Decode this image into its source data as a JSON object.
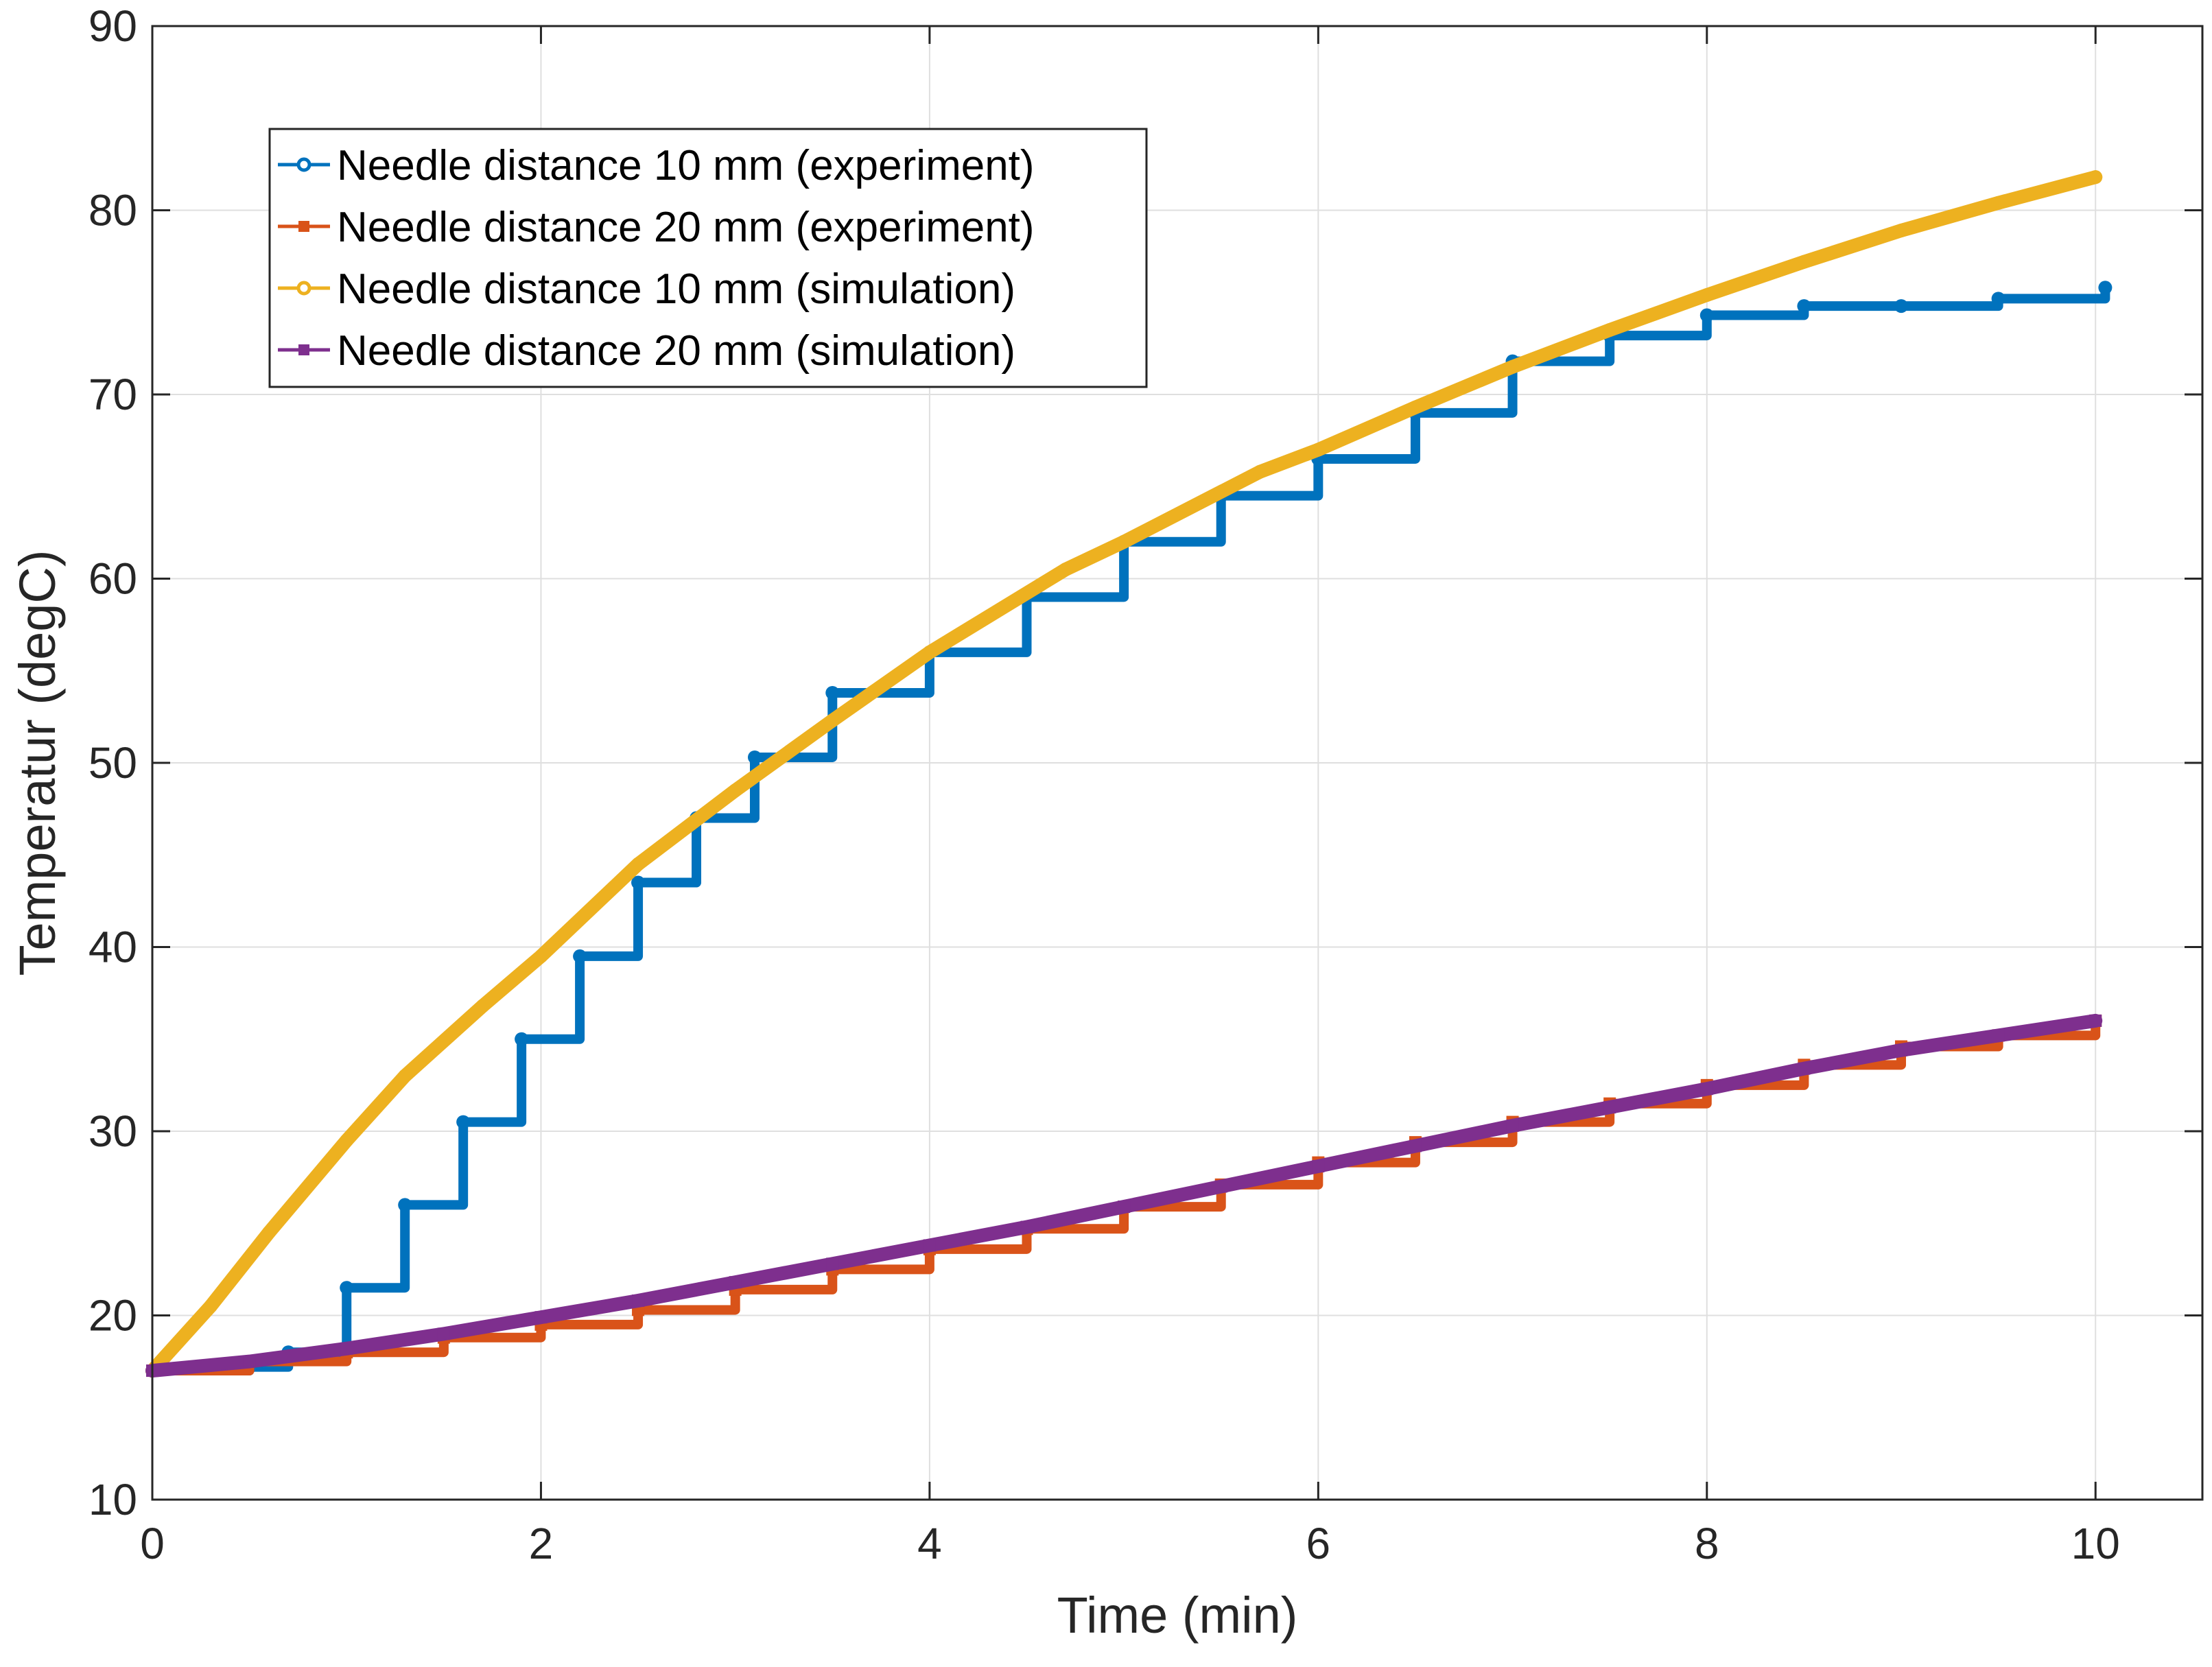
{
  "chart_data": {
    "type": "line",
    "title": "",
    "xlabel": "Time (min)",
    "ylabel": "Temperatur (degC)",
    "xlim": [
      0,
      10.55
    ],
    "ylim": [
      10,
      90
    ],
    "xticks": [
      0,
      2,
      4,
      6,
      8,
      10
    ],
    "yticks": [
      10,
      20,
      30,
      40,
      50,
      60,
      70,
      80,
      90
    ],
    "xtick_labels": [
      "0",
      "2",
      "4",
      "6",
      "8",
      "10"
    ],
    "ytick_labels": [
      "10",
      "20",
      "30",
      "40",
      "50",
      "60",
      "70",
      "80",
      "90"
    ],
    "grid": true,
    "legend_position": "top-left",
    "series": [
      {
        "name": "Needle distance 10 mm (experiment)",
        "color": "#0072BD",
        "marker": "circle",
        "step": true,
        "x": [
          0,
          0.5,
          0.7,
          1.0,
          1.3,
          1.6,
          1.9,
          2.2,
          2.5,
          2.8,
          3.1,
          3.5,
          4.0,
          4.5,
          5.0,
          5.5,
          6.0,
          6.5,
          7.0,
          7.5,
          8.0,
          8.5,
          9.0,
          9.5,
          10.05
        ],
        "y": [
          17.0,
          17.2,
          18.0,
          21.5,
          26.0,
          30.5,
          35.0,
          39.5,
          43.5,
          47.0,
          50.3,
          53.8,
          56.0,
          59.0,
          62.0,
          64.5,
          66.5,
          69.0,
          71.8,
          73.2,
          74.3,
          74.8,
          74.8,
          75.2,
          75.8
        ]
      },
      {
        "name": "Needle distance 20 mm (experiment)",
        "color": "#D95319",
        "marker": "square",
        "step": true,
        "x": [
          0,
          0.5,
          1.0,
          1.5,
          2.0,
          2.5,
          3.0,
          3.5,
          4.0,
          4.5,
          5.0,
          5.5,
          6.0,
          6.5,
          7.0,
          7.5,
          8.0,
          8.5,
          9.0,
          9.5,
          10.0
        ],
        "y": [
          17.0,
          17.5,
          18.0,
          18.8,
          19.5,
          20.3,
          21.4,
          22.5,
          23.6,
          24.7,
          25.9,
          27.1,
          28.3,
          29.4,
          30.5,
          31.5,
          32.5,
          33.6,
          34.6,
          35.2,
          36.0
        ]
      },
      {
        "name": "Needle distance 10 mm (simulation)",
        "color": "#EDB120",
        "marker": "circle",
        "step": false,
        "x": [
          0,
          0.3,
          0.6,
          1.0,
          1.3,
          1.7,
          2.0,
          2.5,
          3.0,
          3.5,
          4.0,
          4.7,
          5.0,
          5.7,
          6.0,
          6.5,
          7.0,
          7.5,
          8.0,
          8.5,
          9.0,
          9.5,
          10.0
        ],
        "y": [
          17.0,
          20.5,
          24.5,
          29.5,
          33.0,
          36.8,
          39.5,
          44.5,
          48.5,
          52.3,
          56.0,
          60.5,
          62.0,
          65.8,
          67.0,
          69.3,
          71.5,
          73.5,
          75.4,
          77.2,
          78.9,
          80.4,
          81.8
        ]
      },
      {
        "name": "Needle distance 20 mm (simulation)",
        "color": "#7E2F8E",
        "marker": "square",
        "step": false,
        "x": [
          0,
          0.5,
          1.0,
          1.5,
          2.0,
          2.5,
          3.0,
          3.5,
          4.0,
          4.5,
          5.0,
          5.5,
          6.0,
          6.5,
          7.0,
          7.5,
          8.0,
          8.5,
          9.0,
          9.5,
          10.0
        ],
        "y": [
          17.0,
          17.5,
          18.2,
          19.0,
          19.9,
          20.8,
          21.8,
          22.8,
          23.8,
          24.8,
          25.9,
          27.0,
          28.1,
          29.2,
          30.3,
          31.3,
          32.3,
          33.4,
          34.4,
          35.2,
          36.0
        ]
      }
    ]
  }
}
